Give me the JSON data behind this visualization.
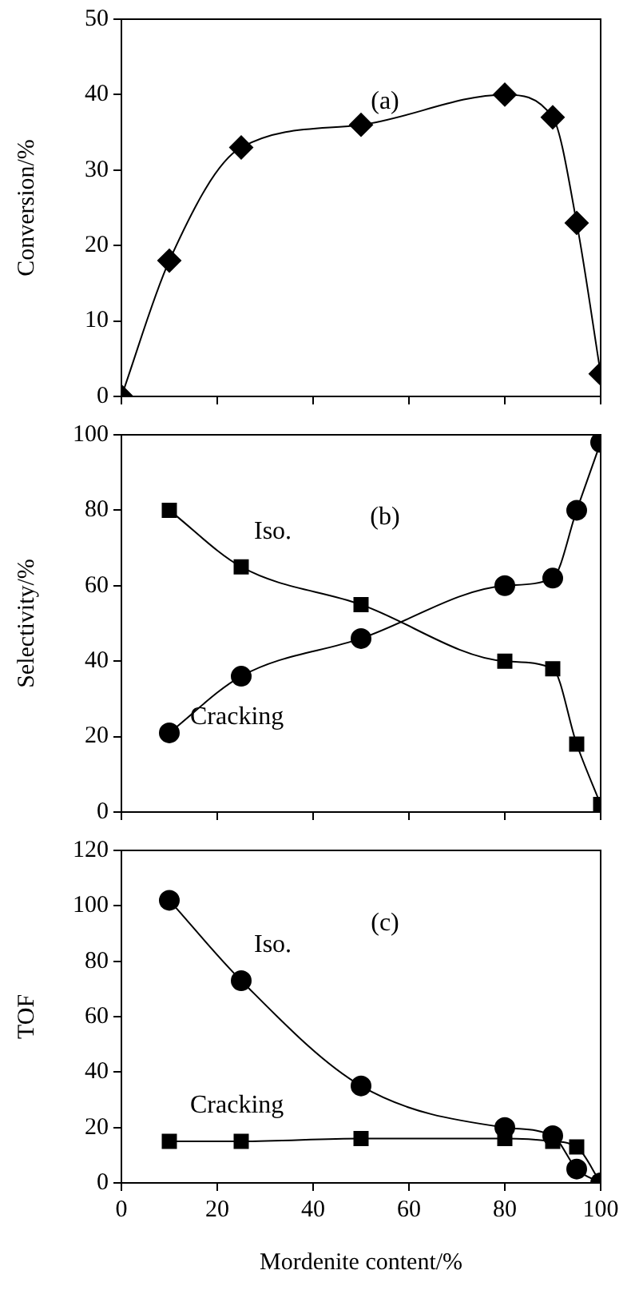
{
  "chart_data": [
    {
      "type": "line",
      "ylabel": "Conversion/%",
      "annotations": [
        "(a)"
      ],
      "xlim": [
        0,
        100
      ],
      "xticks": [
        0,
        20,
        40,
        60,
        80,
        100
      ],
      "ylim": [
        0,
        50
      ],
      "yticks": [
        0,
        10,
        20,
        30,
        40,
        50
      ],
      "tick_labels": "y",
      "grid": false,
      "legend": false,
      "marker": "diamond",
      "series": [
        {
          "color": "#000000",
          "x": [
            0,
            10,
            25,
            50,
            80,
            90,
            95,
            100
          ],
          "values": [
            0,
            18,
            33,
            36,
            40,
            37,
            23,
            3
          ]
        }
      ]
    },
    {
      "type": "line",
      "ylabel": "Selectivity/%",
      "annotations": [
        "(b)"
      ],
      "xlim": [
        0,
        100
      ],
      "xticks": [
        0,
        20,
        40,
        60,
        80,
        100
      ],
      "ylim": [
        0,
        100
      ],
      "yticks": [
        0,
        20,
        40,
        60,
        80,
        100
      ],
      "tick_labels": "y",
      "grid": false,
      "legend": false,
      "series": [
        {
          "name": "Iso.",
          "color": "#000000",
          "marker": "square",
          "x": [
            10,
            25,
            50,
            80,
            90,
            95,
            100
          ],
          "values": [
            80,
            65,
            55,
            40,
            38,
            18,
            2
          ]
        },
        {
          "name": "Cracking",
          "color": "#000000",
          "marker": "circle",
          "x": [
            10,
            25,
            50,
            80,
            90,
            95,
            100
          ],
          "values": [
            21,
            36,
            46,
            60,
            62,
            80,
            98
          ]
        }
      ]
    },
    {
      "type": "line",
      "ylabel": "TOF",
      "xlabel": "Mordenite content/%",
      "annotations": [
        "(c)"
      ],
      "xlim": [
        0,
        100
      ],
      "xticks": [
        0,
        20,
        40,
        60,
        80,
        100
      ],
      "ylim": [
        0,
        120
      ],
      "yticks": [
        0,
        20,
        40,
        60,
        80,
        100,
        120
      ],
      "grid": false,
      "legend": false,
      "series": [
        {
          "name": "Iso.",
          "color": "#000000",
          "marker": "circle",
          "x": [
            10,
            25,
            50,
            80,
            90,
            95,
            100
          ],
          "values": [
            102,
            73,
            35,
            20,
            17,
            5,
            0
          ]
        },
        {
          "name": "Cracking",
          "color": "#000000",
          "marker": "square",
          "x": [
            10,
            25,
            50,
            80,
            90,
            95,
            100
          ],
          "values": [
            15,
            15,
            16,
            16,
            15,
            13,
            0
          ]
        }
      ]
    }
  ]
}
